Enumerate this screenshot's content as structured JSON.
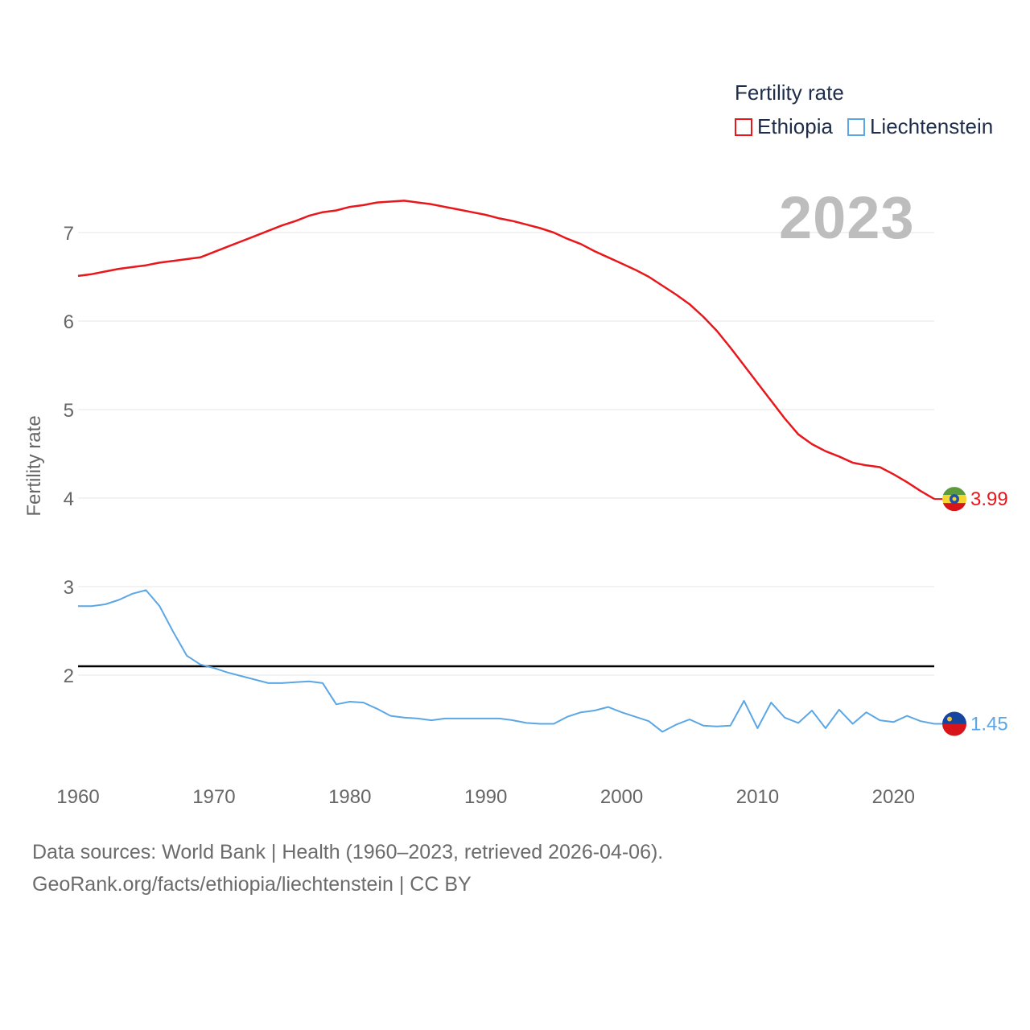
{
  "legend": {
    "title": "Fertility rate",
    "items": [
      {
        "name": "Ethiopia",
        "color": "#e8171b"
      },
      {
        "name": "Liechtenstein",
        "color": "#5ba7e6"
      }
    ]
  },
  "year_label": "2023",
  "footer": {
    "line1": "Data sources: World Bank | Health (1960–2023, retrieved 2026-04-06).",
    "line2": "GeoRank.org/facts/ethiopia/liechtenstein | CC BY"
  },
  "chart_data": {
    "type": "line",
    "title": "Fertility rate",
    "xlabel": "",
    "ylabel": "Fertility rate",
    "xlim": [
      1960,
      2023
    ],
    "ylim": [
      1.0,
      7.7
    ],
    "x_ticks": [
      1960,
      1970,
      1980,
      1990,
      2000,
      2010,
      2020
    ],
    "y_ticks": [
      2,
      3,
      4,
      5,
      6,
      7
    ],
    "grid": true,
    "reference_line": {
      "y": 2.1,
      "color": "#000000"
    },
    "x": [
      1960,
      1961,
      1962,
      1963,
      1964,
      1965,
      1966,
      1967,
      1968,
      1969,
      1970,
      1971,
      1972,
      1973,
      1974,
      1975,
      1976,
      1977,
      1978,
      1979,
      1980,
      1981,
      1982,
      1983,
      1984,
      1985,
      1986,
      1987,
      1988,
      1989,
      1990,
      1991,
      1992,
      1993,
      1994,
      1995,
      1996,
      1997,
      1998,
      1999,
      2000,
      2001,
      2002,
      2003,
      2004,
      2005,
      2006,
      2007,
      2008,
      2009,
      2010,
      2011,
      2012,
      2013,
      2014,
      2015,
      2016,
      2017,
      2018,
      2019,
      2020,
      2021,
      2022,
      2023
    ],
    "series": [
      {
        "name": "Ethiopia",
        "color": "#e8171b",
        "end_label": "3.99",
        "values": [
          6.51,
          6.53,
          6.56,
          6.59,
          6.61,
          6.63,
          6.66,
          6.68,
          6.7,
          6.72,
          6.78,
          6.84,
          6.9,
          6.96,
          7.02,
          7.08,
          7.13,
          7.19,
          7.23,
          7.25,
          7.29,
          7.31,
          7.34,
          7.35,
          7.36,
          7.34,
          7.32,
          7.29,
          7.26,
          7.23,
          7.2,
          7.16,
          7.13,
          7.09,
          7.05,
          7.0,
          6.93,
          6.87,
          6.79,
          6.72,
          6.65,
          6.58,
          6.5,
          6.4,
          6.3,
          6.19,
          6.05,
          5.89,
          5.7,
          5.5,
          5.3,
          5.1,
          4.9,
          4.72,
          4.61,
          4.53,
          4.47,
          4.4,
          4.37,
          4.35,
          4.27,
          4.18,
          4.08,
          3.99
        ]
      },
      {
        "name": "Liechtenstein",
        "color": "#5ba7e6",
        "end_label": "1.45",
        "values": [
          2.78,
          2.78,
          2.8,
          2.85,
          2.92,
          2.96,
          2.78,
          2.49,
          2.22,
          2.12,
          2.08,
          2.03,
          1.99,
          1.95,
          1.91,
          1.91,
          1.92,
          1.93,
          1.91,
          1.67,
          1.7,
          1.69,
          1.62,
          1.54,
          1.52,
          1.51,
          1.49,
          1.51,
          1.51,
          1.51,
          1.51,
          1.51,
          1.49,
          1.46,
          1.45,
          1.45,
          1.53,
          1.58,
          1.6,
          1.64,
          1.58,
          1.53,
          1.48,
          1.36,
          1.44,
          1.5,
          1.43,
          1.42,
          1.43,
          1.71,
          1.4,
          1.69,
          1.52,
          1.46,
          1.6,
          1.4,
          1.61,
          1.45,
          1.58,
          1.49,
          1.47,
          1.54,
          1.48,
          1.45
        ]
      }
    ]
  }
}
